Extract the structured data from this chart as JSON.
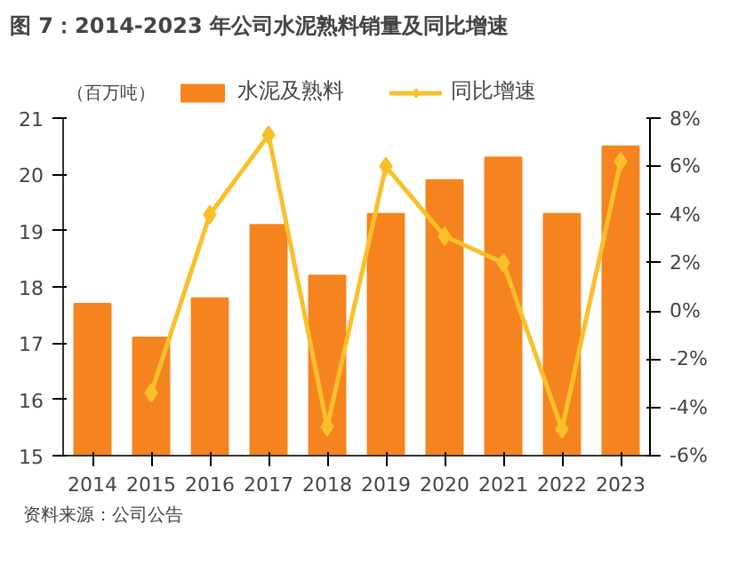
{
  "chart_data": {
    "type": "bar",
    "title": "图 7：2014-2023 年公司水泥熟料销量及同比增速",
    "ylabel": "（百万吨）",
    "categories": [
      "2014",
      "2015",
      "2016",
      "2017",
      "2018",
      "2019",
      "2020",
      "2021",
      "2022",
      "2023"
    ],
    "series": [
      {
        "name": "水泥及熟料",
        "color": "#f5841f",
        "values": [
          17.7,
          17.1,
          17.8,
          19.1,
          18.2,
          19.3,
          19.9,
          20.3,
          19.3,
          20.5
        ]
      },
      {
        "name": "同比增速",
        "type": "line",
        "axis": "y2",
        "color": "#fbbf2a",
        "values": [
          null,
          -3.4,
          4.0,
          7.3,
          -4.8,
          6.0,
          3.1,
          2.0,
          -4.9,
          6.2
        ]
      }
    ],
    "ylim": [
      15,
      21
    ],
    "yticks": [
      15,
      16,
      17,
      18,
      19,
      20,
      21
    ],
    "y2lim": [
      -6,
      8
    ],
    "y2ticks": [
      {
        "value": -6,
        "label": "-6%"
      },
      {
        "value": -4,
        "label": "-4%"
      },
      {
        "value": -2,
        "label": "-2%"
      },
      {
        "value": 0,
        "label": "0%"
      },
      {
        "value": 2,
        "label": "2%"
      },
      {
        "value": 4,
        "label": "4%"
      },
      {
        "value": 6,
        "label": "6%"
      },
      {
        "value": 8,
        "label": "8%"
      }
    ],
    "marker": "diamond",
    "grid": false,
    "legend": "top",
    "annotations": [
      "资料来源：公司公告"
    ]
  }
}
